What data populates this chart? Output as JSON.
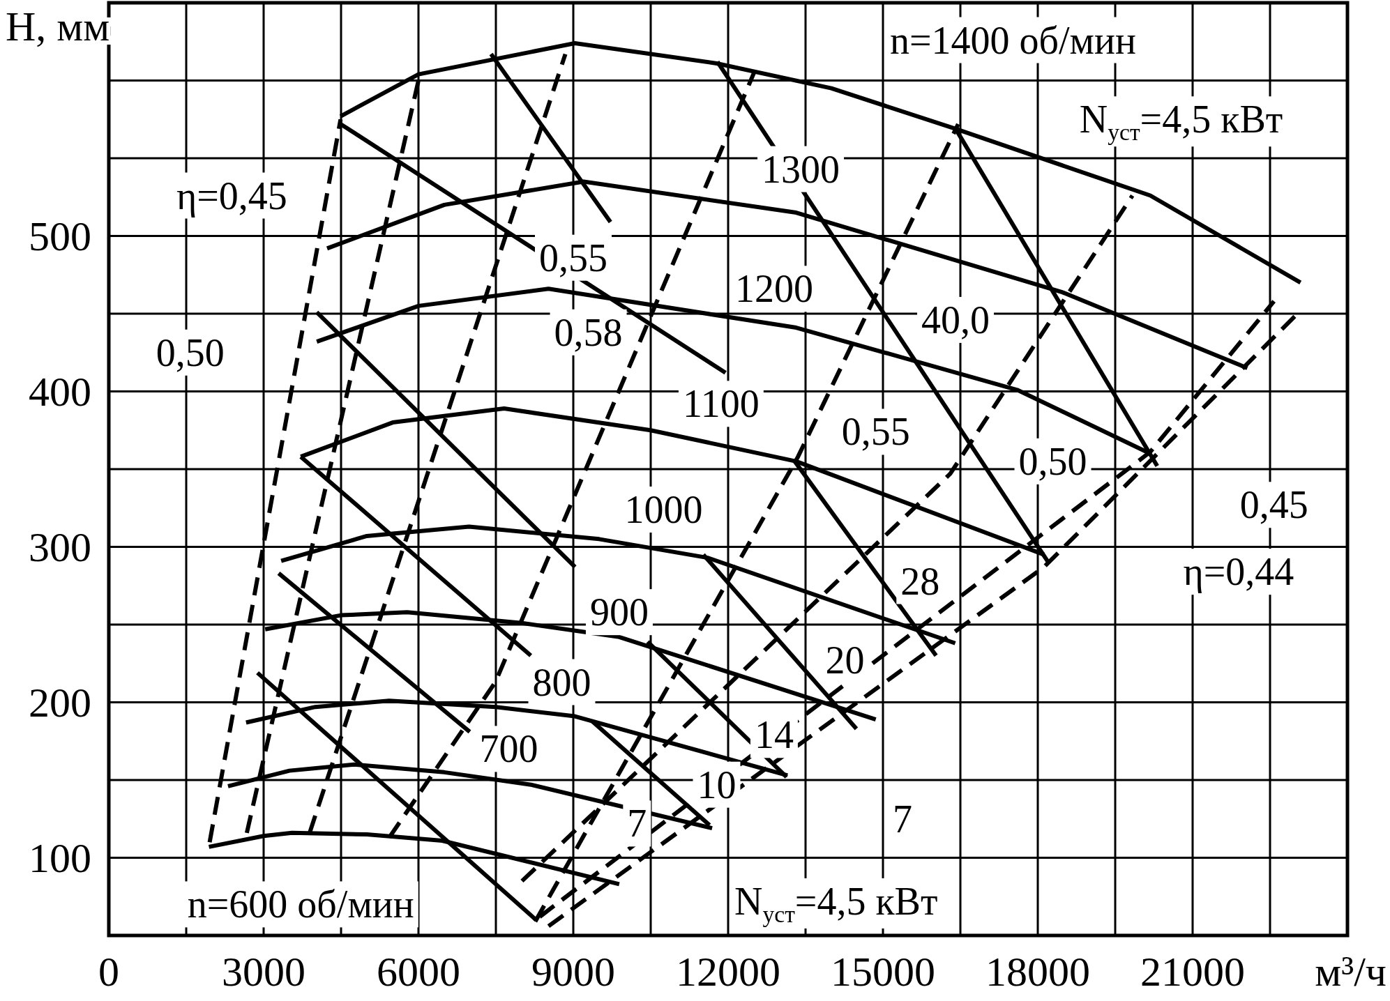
{
  "chart_data": {
    "type": "line",
    "xlabel": "м³/ч",
    "ylabel": "H, мм",
    "xlim": [
      0,
      24000
    ],
    "ylim": [
      50,
      650
    ],
    "xticks": [
      0,
      {
        "value": 1500,
        "label": null
      },
      3000,
      {
        "value": 4500,
        "label": null
      },
      6000,
      {
        "value": 7500,
        "label": null
      },
      9000,
      {
        "value": 10500,
        "label": null
      },
      12000,
      {
        "value": 13500,
        "label": null
      },
      15000,
      {
        "value": 16500,
        "label": null
      },
      18000,
      {
        "value": 19500,
        "label": null
      },
      21000,
      {
        "value": 22500,
        "label": null
      }
    ],
    "yticks": [
      100,
      {
        "value": 150,
        "label": null
      },
      200,
      {
        "value": 250,
        "label": null
      },
      300,
      {
        "value": 350,
        "label": null
      },
      400,
      {
        "value": 450,
        "label": null
      },
      500,
      {
        "value": 550,
        "label": null
      },
      {
        "value": 600,
        "label": null
      }
    ],
    "grid": true,
    "series": [
      {
        "type": "line",
        "color": "#000000",
        "line_style": "solid",
        "x": [
          4490,
          6000,
          9030,
          11780,
          14000,
          16400,
          20180,
          23090
        ],
        "values": [
          577,
          604,
          624,
          611,
          595,
          569,
          526,
          470
        ]
      },
      {
        "type": "line",
        "color": "#000000",
        "line_style": "solid",
        "x": [
          4230,
          6500,
          9200,
          13320,
          18460,
          22060
        ],
        "values": [
          492,
          520,
          535,
          515,
          464,
          415
        ]
      },
      {
        "type": "line",
        "color": "#000000",
        "line_style": "solid",
        "x": [
          4030,
          6000,
          8520,
          13320,
          17600,
          20180
        ],
        "values": [
          432,
          455,
          466,
          441,
          401,
          360
        ]
      },
      {
        "type": "line",
        "color": "#000000",
        "line_style": "solid",
        "x": [
          3720,
          5500,
          7660,
          10500,
          13320,
          18120
        ],
        "values": [
          358,
          380,
          389,
          375,
          355,
          295
        ]
      },
      {
        "type": "line",
        "color": "#000000",
        "line_style": "solid",
        "x": [
          3340,
          5000,
          6980,
          9500,
          11600,
          16400
        ],
        "values": [
          291,
          307,
          313,
          305,
          293,
          238
        ]
      },
      {
        "type": "line",
        "color": "#000000",
        "line_style": "solid",
        "x": [
          3030,
          4500,
          5780,
          8000,
          9890,
          14860
        ],
        "values": [
          247,
          256,
          258,
          251,
          242,
          189
        ]
      },
      {
        "type": "line",
        "color": "#000000",
        "line_style": "solid",
        "x": [
          2660,
          4000,
          5430,
          7500,
          9030,
          13150
        ],
        "values": [
          187,
          197,
          201,
          197,
          191,
          153
        ]
      },
      {
        "type": "line",
        "color": "#000000",
        "line_style": "solid",
        "x": [
          2310,
          3500,
          4750,
          6500,
          8180,
          11690
        ],
        "values": [
          146,
          156,
          160,
          155,
          147,
          119
        ]
      },
      {
        "type": "line",
        "color": "#000000",
        "line_style": "solid",
        "x": [
          1940,
          3000,
          3550,
          5000,
          6460,
          9890
        ],
        "values": [
          107,
          114,
          116,
          115,
          111,
          83
        ]
      },
      {
        "type": "line",
        "color": "#000000",
        "line_style": "dashed",
        "x": [
          1954,
          4491
        ],
        "values": [
          110,
          575
        ]
      },
      {
        "type": "line",
        "color": "#000000",
        "line_style": "dashed",
        "x": [
          2674,
          6000
        ],
        "values": [
          116,
          600
        ]
      },
      {
        "type": "line",
        "color": "#000000",
        "line_style": "dashed",
        "x": [
          3891,
          8846
        ],
        "values": [
          116,
          617
        ]
      },
      {
        "type": "line",
        "color": "#000000",
        "line_style": "dashed",
        "x": [
          5434,
          7491,
          12514
        ],
        "values": [
          113,
          213,
          606
        ]
      },
      {
        "type": "line",
        "color": "#000000",
        "line_style": "dashed",
        "x": [
          8263,
          13354,
          16457
        ],
        "values": [
          59,
          358,
          572
        ]
      },
      {
        "type": "line",
        "color": "#000000",
        "line_style": "dashed",
        "x": [
          8006,
          16303,
          19834
        ],
        "values": [
          85,
          347,
          526
        ]
      },
      {
        "type": "line",
        "color": "#000000",
        "line_style": "dashed",
        "x": [
          8349,
          20177,
          22577
        ],
        "values": [
          62,
          361,
          458
        ]
      },
      {
        "type": "line",
        "color": "#000000",
        "line_style": "dashed",
        "x": [
          8520,
          18120,
          23091
        ],
        "values": [
          56,
          287,
          452
        ]
      },
      {
        "type": "line",
        "color": "#000000",
        "line_style": "solid",
        "x": [
          4491,
          11949
        ],
        "values": [
          572,
          412
        ]
      },
      {
        "type": "line",
        "color": "#000000",
        "line_style": "solid",
        "x": [
          7406,
          9720
        ],
        "values": [
          617,
          509
        ]
      },
      {
        "type": "line",
        "color": "#000000",
        "line_style": "solid",
        "x": [
          4029,
          9034
        ],
        "values": [
          451,
          287
        ]
      },
      {
        "type": "line",
        "color": "#000000",
        "line_style": "solid",
        "x": [
          3720,
          8177
        ],
        "values": [
          358,
          230
        ]
      },
      {
        "type": "line",
        "color": "#000000",
        "line_style": "solid",
        "x": [
          3291,
          6994
        ],
        "values": [
          283,
          181
        ]
      },
      {
        "type": "line",
        "color": "#000000",
        "line_style": "solid",
        "x": [
          2880,
          8280
        ],
        "values": [
          219,
          60
        ]
      },
      {
        "type": "line",
        "color": "#000000",
        "line_style": "solid",
        "x": [
          11794,
          18206
        ],
        "values": [
          612,
          290
        ]
      },
      {
        "type": "line",
        "color": "#000000",
        "line_style": "solid",
        "x": [
          16406,
          20314
        ],
        "values": [
          569,
          352
        ]
      },
      {
        "type": "line",
        "color": "#000000",
        "line_style": "solid",
        "x": [
          13269,
          16029
        ],
        "values": [
          356,
          230
        ]
      },
      {
        "type": "line",
        "color": "#000000",
        "line_style": "solid",
        "x": [
          11520,
          14486
        ],
        "values": [
          295,
          183
        ]
      },
      {
        "type": "line",
        "color": "#000000",
        "line_style": "solid",
        "x": [
          10440,
          13131
        ],
        "values": [
          239,
          152
        ]
      },
      {
        "type": "line",
        "color": "#000000",
        "line_style": "solid",
        "x": [
          9360,
          11640
        ],
        "values": [
          188,
          121
        ]
      }
    ],
    "annotations": [
      "n=1400 об/мин",
      "N$_{уст}$=4,5 кВт",
      "η=0,45",
      "0,55",
      "0,58",
      "1300",
      "1200",
      "40,0",
      "0,50",
      "1100",
      "0,55",
      "0,50",
      "0,45",
      "η=0,44",
      "1000",
      "28",
      "900",
      "20",
      "800",
      "14",
      "700",
      "10",
      "7",
      "7",
      "n=600 об/мин",
      "N$_{уст}$=4,5 кВт"
    ]
  }
}
